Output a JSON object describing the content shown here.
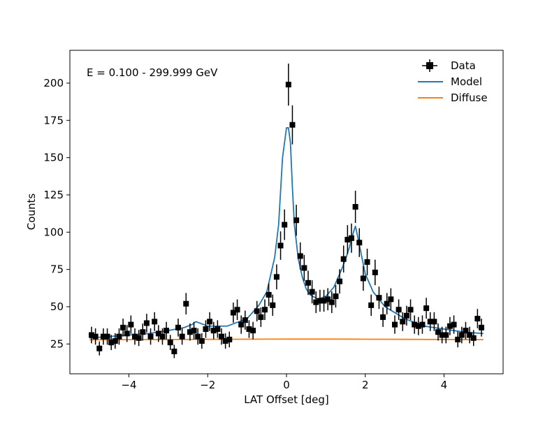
{
  "chart_data": {
    "type": "scatter",
    "title": "",
    "annotation": "E = 0.100 - 299.999 GeV",
    "xlabel": "LAT Offset [deg]",
    "ylabel": "Counts",
    "xlim": [
      -5.5,
      5.5
    ],
    "ylim": [
      5,
      222
    ],
    "xticks": [
      -4,
      -2,
      0,
      2,
      4
    ],
    "xtick_labels": [
      "−4",
      "−2",
      "0",
      "2",
      "4"
    ],
    "yticks": [
      25,
      50,
      75,
      100,
      125,
      150,
      175,
      200
    ],
    "ytick_labels": [
      "25",
      "50",
      "75",
      "100",
      "125",
      "150",
      "175",
      "200"
    ],
    "grid": false,
    "legend_position": "top-right",
    "legend": [
      "Data",
      "Model",
      "Diffuse"
    ],
    "series": [
      {
        "name": "Data",
        "style": "points-with-errorbars",
        "color": "#000000",
        "x": [
          -4.95,
          -4.85,
          -4.75,
          -4.65,
          -4.55,
          -4.45,
          -4.35,
          -4.25,
          -4.15,
          -4.05,
          -3.95,
          -3.85,
          -3.75,
          -3.65,
          -3.55,
          -3.45,
          -3.35,
          -3.25,
          -3.15,
          -3.05,
          -2.95,
          -2.85,
          -2.75,
          -2.65,
          -2.55,
          -2.45,
          -2.35,
          -2.25,
          -2.15,
          -2.05,
          -1.95,
          -1.85,
          -1.75,
          -1.65,
          -1.55,
          -1.45,
          -1.35,
          -1.25,
          -1.15,
          -1.05,
          -0.95,
          -0.85,
          -0.75,
          -0.65,
          -0.55,
          -0.45,
          -0.35,
          -0.25,
          -0.15,
          -0.05,
          0.05,
          0.15,
          0.25,
          0.35,
          0.45,
          0.55,
          0.65,
          0.75,
          0.85,
          0.95,
          1.05,
          1.15,
          1.25,
          1.35,
          1.45,
          1.55,
          1.65,
          1.75,
          1.85,
          1.95,
          2.05,
          2.15,
          2.25,
          2.35,
          2.45,
          2.55,
          2.65,
          2.75,
          2.85,
          2.95,
          3.05,
          3.15,
          3.25,
          3.35,
          3.45,
          3.55,
          3.65,
          3.75,
          3.85,
          3.95,
          4.05,
          4.15,
          4.25,
          4.35,
          4.45,
          4.55,
          4.65,
          4.75,
          4.85,
          4.95
        ],
        "y": [
          31,
          30,
          22,
          30,
          30,
          26,
          27,
          30,
          36,
          32,
          38,
          30,
          29,
          33,
          39,
          30,
          40,
          32,
          30,
          34,
          26,
          20,
          36,
          30,
          52,
          33,
          34,
          30,
          27,
          35,
          40,
          34,
          35,
          30,
          27,
          28,
          46,
          48,
          38,
          41,
          35,
          34,
          47,
          43,
          48,
          58,
          51,
          70,
          91,
          105,
          199,
          172,
          108,
          84,
          76,
          66,
          60,
          53,
          54,
          54,
          55,
          53,
          57,
          67,
          82,
          95,
          96,
          117,
          93,
          69,
          80,
          51,
          73,
          56,
          43,
          52,
          55,
          38,
          48,
          40,
          44,
          48,
          38,
          37,
          38,
          49,
          40,
          40,
          33,
          31,
          31,
          37,
          38,
          28,
          31,
          34,
          31,
          29,
          42,
          36
        ]
      },
      {
        "name": "Model",
        "style": "line",
        "color": "#1f77b4",
        "x": [
          -5.0,
          -4.5,
          -4.0,
          -3.5,
          -3.0,
          -2.6,
          -2.4,
          -2.3,
          -2.0,
          -1.5,
          -1.0,
          -0.7,
          -0.5,
          -0.3,
          -0.2,
          -0.1,
          0.0,
          0.05,
          0.1,
          0.15,
          0.2,
          0.3,
          0.4,
          0.5,
          0.6,
          0.8,
          1.0,
          1.2,
          1.4,
          1.5,
          1.6,
          1.7,
          1.75,
          1.8,
          1.9,
          2.0,
          2.2,
          2.5,
          3.0,
          3.5,
          4.0,
          4.5,
          5.0
        ],
        "y": [
          29,
          30,
          31,
          32,
          34,
          36,
          38,
          40,
          37,
          37,
          42,
          51,
          60,
          83,
          105,
          150,
          170,
          170,
          160,
          130,
          105,
          82,
          70,
          62,
          58,
          55,
          57,
          63,
          75,
          82,
          90,
          100,
          104,
          98,
          85,
          72,
          60,
          50,
          42,
          37,
          35,
          33,
          32
        ]
      },
      {
        "name": "Diffuse",
        "style": "line",
        "color": "#ff7f0e",
        "x": [
          -5.0,
          -4.0,
          -3.0,
          -2.0,
          -1.0,
          0.0,
          1.0,
          2.0,
          3.0,
          4.0,
          5.0
        ],
        "y": [
          27.8,
          27.9,
          28.0,
          28.1,
          28.2,
          28.3,
          28.3,
          28.2,
          28.1,
          28.0,
          27.9
        ]
      }
    ],
    "data_errors": {
      "x_half_width": 0.05,
      "y_sigma": "sqrt(counts)"
    }
  }
}
